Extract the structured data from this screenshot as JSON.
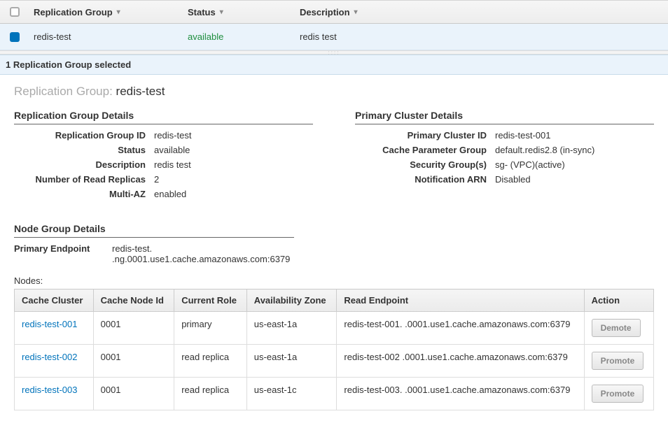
{
  "header": {
    "columns": {
      "replication_group": "Replication Group",
      "status": "Status",
      "description": "Description"
    }
  },
  "row": {
    "name": "redis-test",
    "status": "available",
    "description": "redis test"
  },
  "selection_text": "1 Replication Group selected",
  "group_title_prefix": "Replication Group:",
  "group_title_name": "redis-test",
  "replication_details": {
    "heading": "Replication Group Details",
    "id_label": "Replication Group ID",
    "id_value": "redis-test",
    "status_label": "Status",
    "status_value": "available",
    "desc_label": "Description",
    "desc_value": "redis test",
    "replicas_label": "Number of Read Replicas",
    "replicas_value": "2",
    "multiaz_label": "Multi-AZ",
    "multiaz_value": "enabled"
  },
  "primary_cluster": {
    "heading": "Primary Cluster Details",
    "id_label": "Primary Cluster ID",
    "id_value": "redis-test-001",
    "param_label": "Cache Parameter Group",
    "param_value": "default.redis2.8 (in-sync)",
    "sg_label": "Security Group(s)",
    "sg_value": "sg-             (VPC)(active)",
    "arn_label": "Notification ARN",
    "arn_value": "Disabled"
  },
  "node_group": {
    "heading": "Node Group Details",
    "primary_ep_label": "Primary Endpoint",
    "primary_ep_value": "redis-test.        .ng.0001.use1.cache.amazonaws.com:6379",
    "nodes_label": "Nodes:"
  },
  "nodes_table": {
    "columns": {
      "cache_cluster": "Cache Cluster",
      "node_id": "Cache Node Id",
      "role": "Current Role",
      "az": "Availability Zone",
      "read_ep": "Read Endpoint",
      "action": "Action"
    },
    "rows": [
      {
        "cluster": "redis-test-001",
        "node_id": "0001",
        "role": "primary",
        "az": "us-east-1a",
        "read_ep": "redis-test-001.        .0001.use1.cache.amazonaws.com:6379",
        "action": "Demote"
      },
      {
        "cluster": "redis-test-002",
        "node_id": "0001",
        "role": "read replica",
        "az": "us-east-1a",
        "read_ep": "redis-test-002        .0001.use1.cache.amazonaws.com:6379",
        "action": "Promote"
      },
      {
        "cluster": "redis-test-003",
        "node_id": "0001",
        "role": "read replica",
        "az": "us-east-1c",
        "read_ep": "redis-test-003.        .0001.use1.cache.amazonaws.com:6379",
        "action": "Promote"
      }
    ]
  },
  "colors": {
    "selected_bg": "#eaf3fb",
    "status_green": "#1e8e3e",
    "link_blue": "#0073bb",
    "checkbox_blue": "#0073bb"
  }
}
